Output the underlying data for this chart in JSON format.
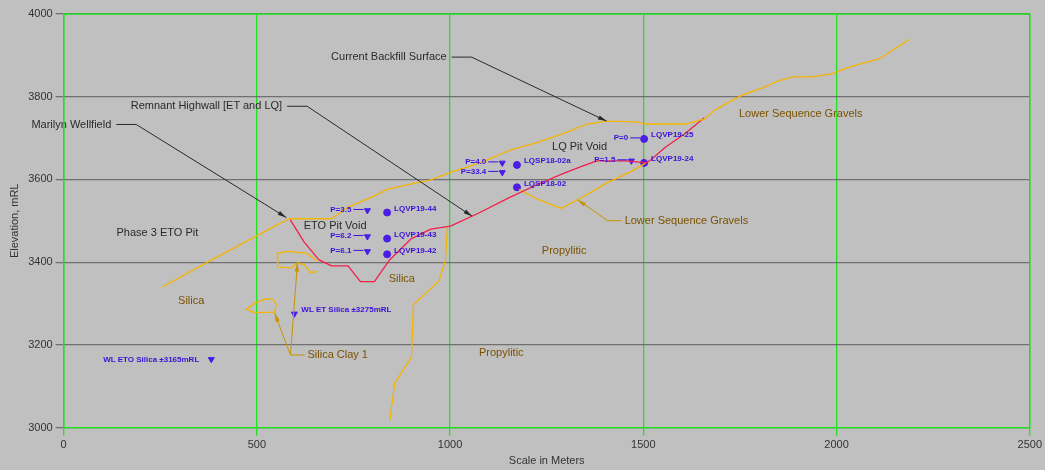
{
  "chart_data": {
    "type": "line",
    "xlabel": "Scale in Meters",
    "ylabel": "Elevation, mRL",
    "xlim": [
      0,
      2500
    ],
    "xticks": [
      0,
      500,
      1000,
      1500,
      2000,
      2500
    ],
    "ylim": [
      3000,
      4000
    ],
    "yticks": [
      3000,
      3200,
      3400,
      3600,
      3800,
      4000
    ],
    "grid": true,
    "legend": false,
    "series": [
      {
        "color": "#f5b400",
        "marker": "none",
        "x": [
          255,
          394,
          546,
          584,
          693,
          736,
          774,
          799,
          837,
          900,
          950,
          1001,
          1077,
          1153,
          1229,
          1292,
          1355,
          1405,
          1481,
          1507,
          1608,
          1658,
          1684,
          1721,
          1759,
          1810,
          1848,
          1886,
          1936,
          1987,
          2037,
          2113,
          2189
        ],
        "values": [
          3340,
          3411,
          3487,
          3505,
          3505,
          3533,
          3548,
          3558,
          3576,
          3589,
          3599,
          3617,
          3640,
          3670,
          3690,
          3711,
          3734,
          3741,
          3739,
          3734,
          3734,
          3746,
          3767,
          3787,
          3805,
          3822,
          3838,
          3848,
          3848,
          3855,
          3873,
          3893,
          3939
        ]
      },
      {
        "color": "#f0204c",
        "marker": "none",
        "x": [
          586,
          622,
          660,
          693,
          736,
          768,
          804,
          844,
          900,
          950,
          1001,
          1077,
          1153,
          1229,
          1292,
          1342,
          1380,
          1456,
          1507,
          1519,
          1557,
          1608,
          1658
        ],
        "values": [
          3503,
          3449,
          3406,
          3391,
          3391,
          3353,
          3353,
          3406,
          3457,
          3480,
          3487,
          3520,
          3556,
          3589,
          3614,
          3632,
          3645,
          3645,
          3640,
          3647,
          3678,
          3711,
          3749
        ]
      },
      {
        "color": "#f5b400",
        "marker": "none",
        "x": [
          1178,
          1229,
          1287,
          1330,
          1405,
          1468,
          1507
        ],
        "values": [
          3576,
          3551,
          3530,
          3551,
          3591,
          3619,
          3640
        ]
      },
      {
        "color": "#f5b400",
        "marker": "none",
        "x": [
          844,
          857,
          900,
          905,
          943,
          971,
          988,
          993
        ],
        "values": [
          3018,
          3109,
          3170,
          3297,
          3330,
          3355,
          3404,
          3487
        ]
      },
      {
        "color": "#f5b400",
        "marker": "none",
        "x": [
          553,
          580,
          630,
          655
        ],
        "values": [
          3422,
          3426,
          3421,
          3403
        ]
      },
      {
        "color": "#f5b400",
        "marker": "none",
        "x": [
          553,
          554,
          588,
          605,
          622,
          639,
          655
        ],
        "values": [
          3422,
          3388,
          3386,
          3398,
          3394,
          3375,
          3377
        ]
      },
      {
        "color": "#f5b400",
        "marker": "none",
        "x": [
          472,
          495,
          521,
          542,
          550
        ],
        "values": [
          3286,
          3301,
          3311,
          3310,
          3297
        ]
      },
      {
        "color": "#f5b400",
        "marker": "none",
        "x": [
          472,
          495,
          546,
          550
        ],
        "values": [
          3286,
          3278,
          3279,
          3297
        ]
      },
      {
        "type": "scatter",
        "color": "#4b1ee6",
        "marker": "circle",
        "x": [
          837,
          837,
          837,
          1173,
          1173,
          1502,
          1502
        ],
        "values": [
          3520,
          3457,
          3419,
          3635,
          3581,
          3698,
          3640
        ],
        "value_labels": [
          "LQVP19-44",
          "LQVP19-43",
          "LQVP19-42",
          "LQSP18-02a",
          "LQSP18-02",
          "LQVP19-25",
          "LQVP19-24"
        ]
      },
      {
        "type": "scatter",
        "color": "#4b1ee6",
        "marker": "triangle",
        "x": [
          786,
          786,
          786,
          1135,
          1135,
          1469
        ],
        "values": [
          3525,
          3462,
          3426,
          3640,
          3617,
          3645
        ]
      },
      {
        "type": "scatter",
        "color": "#4b1ee6",
        "marker": "triangle",
        "x": [
          382
        ],
        "values": [
          3165
        ],
        "value_labels": [
          "WL ETO Silica ±3165mRL"
        ]
      },
      {
        "type": "scatter",
        "color": "#4b1ee6",
        "marker": "triangle",
        "x": [
          597
        ],
        "values": [
          3275
        ],
        "value_labels": [
          "WL ET Silica ±3275mRL"
        ]
      }
    ],
    "annotations": [
      {
        "text": "Current Backfill Surface",
        "x": 1405,
        "y": 3741
      },
      {
        "text": "Remnant Highwall [ET and LQ]",
        "x": 1057,
        "y": 3511
      },
      {
        "text": "Marilyn Wellfield",
        "x": 576,
        "y": 3508
      },
      {
        "text": "P=3.5",
        "x": 786,
        "y": 3525
      },
      {
        "text": "P=6.2",
        "x": 786,
        "y": 3462
      },
      {
        "text": "P=6.1",
        "x": 786,
        "y": 3426
      },
      {
        "text": "P=4.0",
        "x": 1135,
        "y": 3640
      },
      {
        "text": "P=33.4",
        "x": 1135,
        "y": 3617
      },
      {
        "text": "P=1.5",
        "x": 1469,
        "y": 3645
      },
      {
        "text": "P=0",
        "x": 1502,
        "y": 3698
      },
      "Phase 3 ETO Pit",
      "ETO Pit Void",
      "LQ Pit Void",
      "Silica",
      "Silica",
      {
        "text": "Silica Clay 1",
        "x": 605,
        "y": 3398
      },
      {
        "text": "Lower Sequence Gravels",
        "x": 1330,
        "y": 3551
      },
      "Lower Sequence Gravels",
      "Propylitic",
      "Propylitic"
    ]
  }
}
